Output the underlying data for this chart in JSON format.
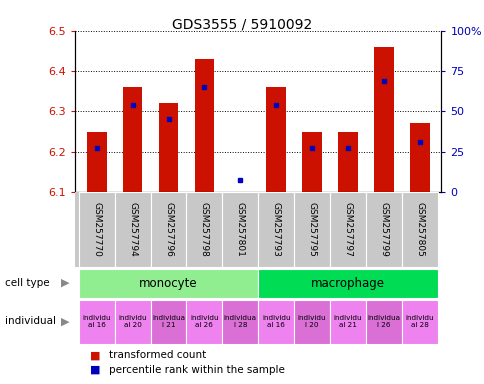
{
  "title": "GDS3555 / 5910092",
  "samples": [
    "GSM257770",
    "GSM257794",
    "GSM257796",
    "GSM257798",
    "GSM257801",
    "GSM257793",
    "GSM257795",
    "GSM257797",
    "GSM257799",
    "GSM257805"
  ],
  "red_values": [
    6.25,
    6.36,
    6.32,
    6.43,
    6.1,
    6.36,
    6.25,
    6.25,
    6.46,
    6.27
  ],
  "blue_values": [
    6.21,
    6.315,
    6.28,
    6.36,
    6.13,
    6.315,
    6.21,
    6.21,
    6.375,
    6.225
  ],
  "ylim_left": [
    6.1,
    6.5
  ],
  "ylim_right": [
    0,
    100
  ],
  "yticks_left": [
    6.1,
    6.2,
    6.3,
    6.4,
    6.5
  ],
  "yticks_right": [
    0,
    25,
    50,
    75,
    100
  ],
  "cell_types": [
    {
      "label": "monocyte",
      "start": 0,
      "end": 5,
      "color": "#90ee90"
    },
    {
      "label": "macrophage",
      "start": 5,
      "end": 10,
      "color": "#00dd55"
    }
  ],
  "ind_labels": [
    "individu\nal 16",
    "individu\nal 20",
    "individua\nl 21",
    "individu\nal 26",
    "individua\nl 28",
    "individu\nal 16",
    "individu\nl 20",
    "individu\nal 21",
    "individua\nl 26",
    "individu\nal 28"
  ],
  "ind_colors": [
    "#ee82ee",
    "#ee82ee",
    "#da70d6",
    "#ee82ee",
    "#da70d6",
    "#ee82ee",
    "#da70d6",
    "#ee82ee",
    "#da70d6",
    "#ee82ee"
  ],
  "bar_color": "#cc1100",
  "blue_color": "#0000bb",
  "base": 6.1,
  "bar_width": 0.55,
  "legend_red": "transformed count",
  "legend_blue": "percentile rank within the sample",
  "ylabel_left_color": "#cc1100",
  "ylabel_right_color": "#0000bb",
  "sample_bg": "#c8c8c8",
  "sample_border": "#ffffff"
}
